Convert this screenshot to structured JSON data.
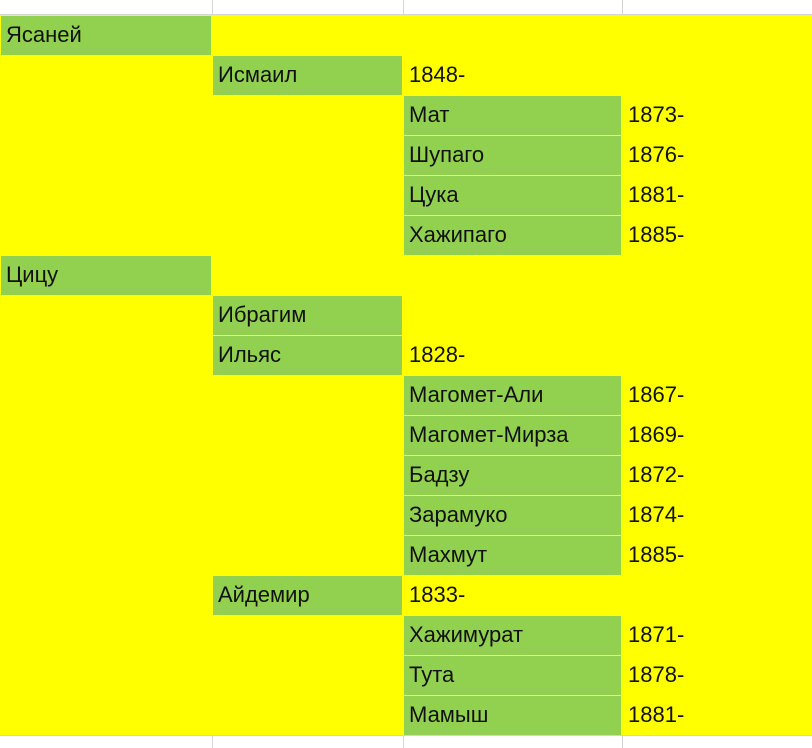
{
  "families": [
    {
      "name": "Ясаней",
      "sons": [
        {
          "name": "Исмаил",
          "year": "1848-",
          "children": [
            {
              "name": "Мат",
              "year": "1873-"
            },
            {
              "name": "Шупаго",
              "year": "1876-"
            },
            {
              "name": "Цука",
              "year": "1881-"
            },
            {
              "name": "Хажипаго",
              "year": "1885-"
            }
          ]
        }
      ]
    },
    {
      "name": "Цицу",
      "sons": [
        {
          "name": "Ибрагим"
        },
        {
          "name": "Ильяс",
          "year": "1828-",
          "children": [
            {
              "name": "Магомет-Али",
              "year": "1867-"
            },
            {
              "name": "Магомет-Мирза",
              "year": "1869-"
            },
            {
              "name": "Бадзу",
              "year": "1872-"
            },
            {
              "name": "Зарамуко",
              "year": "1874-"
            },
            {
              "name": "Махмут",
              "year": "1885-"
            }
          ]
        },
        {
          "name": "Айдемир",
          "year": "1833-",
          "children": [
            {
              "name": "Хажимурат",
              "year": "1871-"
            },
            {
              "name": "Тута",
              "year": "1878-"
            },
            {
              "name": "Мамыш",
              "year": "1881-"
            }
          ]
        }
      ]
    }
  ]
}
